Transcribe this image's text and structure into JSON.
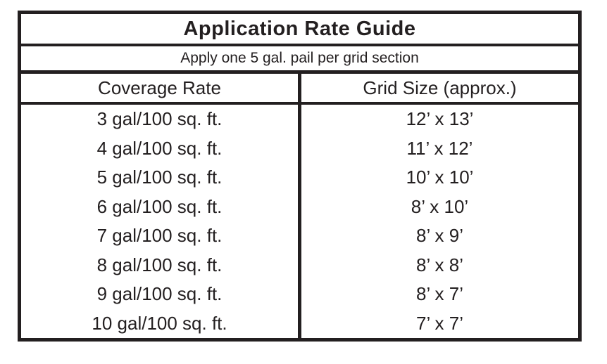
{
  "document": {
    "title": "Application Rate Guide",
    "subtitle": "Apply one 5 gal. pail per grid section",
    "columns": {
      "coverage": "Coverage Rate",
      "grid": "Grid Size (approx.)"
    },
    "rows": [
      {
        "coverage": "3 gal/100 sq. ft.",
        "grid": "12’ x 13’"
      },
      {
        "coverage": "4 gal/100 sq. ft.",
        "grid": "11’ x 12’"
      },
      {
        "coverage": "5 gal/100 sq. ft.",
        "grid": "10’ x 10’"
      },
      {
        "coverage": "6 gal/100 sq. ft.",
        "grid": "8’ x 10’"
      },
      {
        "coverage": "7 gal/100 sq. ft.",
        "grid": "8’ x 9’"
      },
      {
        "coverage": "8 gal/100 sq. ft.",
        "grid": "8’ x 8’"
      },
      {
        "coverage": "9 gal/100 sq. ft.",
        "grid": "8’ x 7’"
      },
      {
        "coverage": "10 gal/100 sq. ft.",
        "grid": "7’ x 7’"
      }
    ],
    "colors": {
      "ink": "#231f20",
      "paper": "#ffffff"
    }
  }
}
